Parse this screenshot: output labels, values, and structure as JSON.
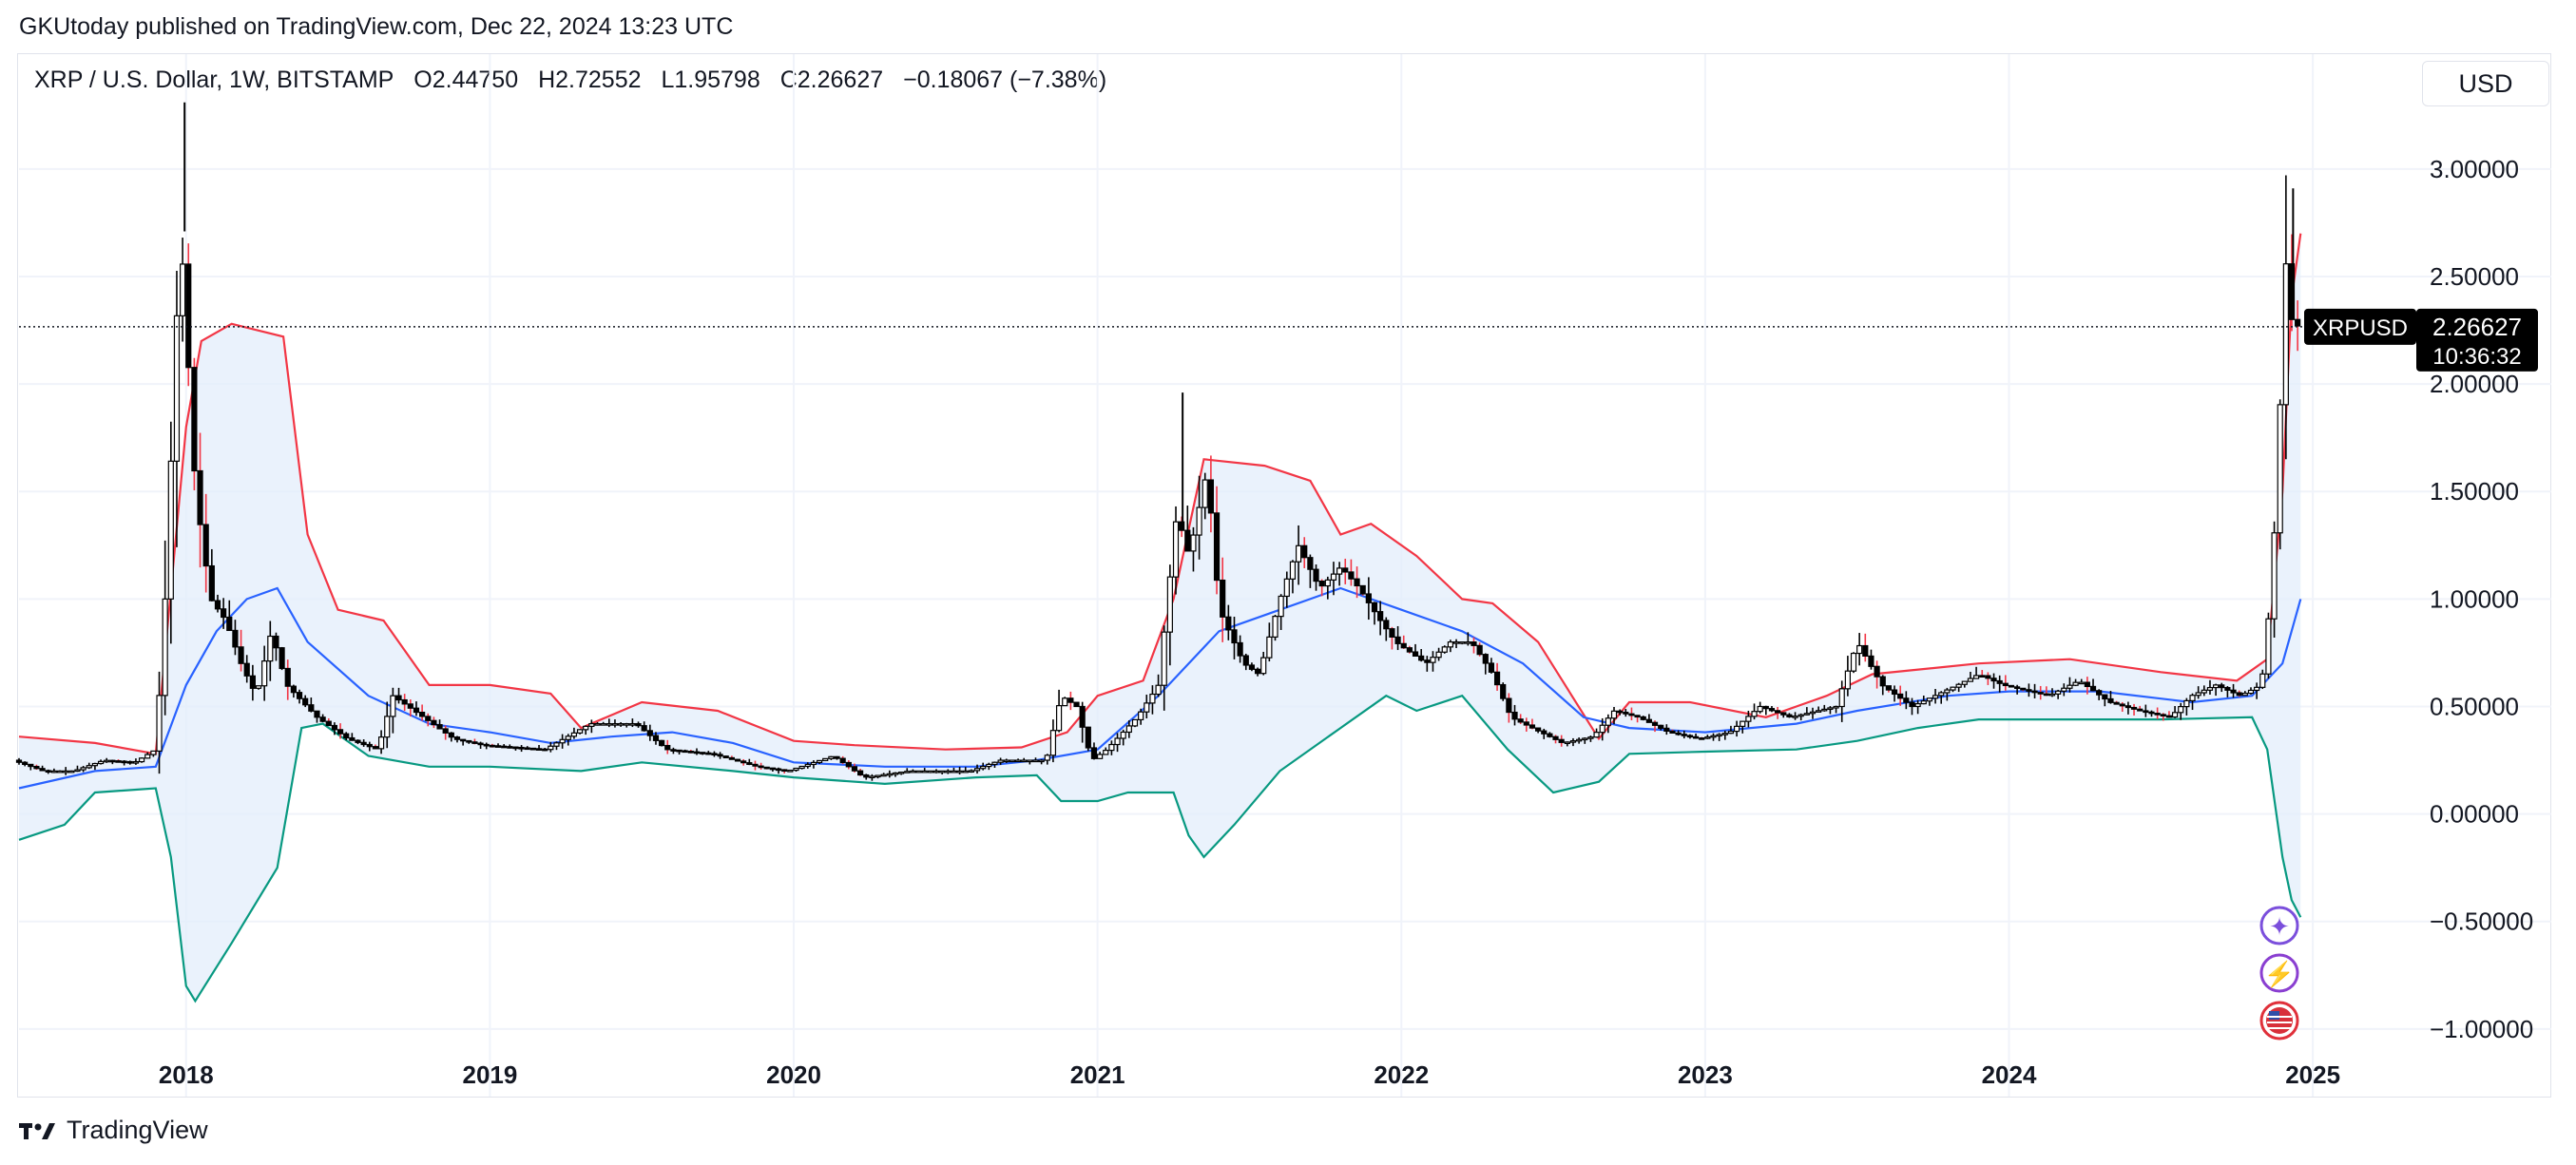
{
  "header": {
    "published": "GKUtoday published on TradingView.com, Dec 22, 2024 13:23 UTC"
  },
  "legend": {
    "symbol": "XRP / U.S. Dollar, 1W, BITSTAMP",
    "open": "O2.44750",
    "high": "H2.72552",
    "low": "L1.95798",
    "close": "C2.26627",
    "change": "−0.18067 (−7.38%)"
  },
  "currency_button": "USD",
  "price_label": {
    "ticker": "XRPUSD",
    "price": "2.26627",
    "countdown": "10:36:32"
  },
  "footer": {
    "brand": "TradingView",
    "logo_text": "17"
  },
  "markers": [
    {
      "name": "star-icon",
      "glyph": "✦",
      "color": "#7b4fdc"
    },
    {
      "name": "lightning-icon",
      "glyph": "⚡",
      "color": "#8a3fd1"
    },
    {
      "name": "us-flag-icon",
      "glyph": "",
      "color": "#e0303a"
    }
  ],
  "chart_data": {
    "type": "candlestick",
    "interval": "1W",
    "indicator": "Bollinger Bands",
    "ylim": [
      -1.25,
      3.45
    ],
    "xlim": [
      2017.45,
      2025.35
    ],
    "yticks": [
      3.0,
      2.5,
      2.0,
      1.5,
      1.0,
      0.5,
      0.0,
      -0.5,
      -1.0
    ],
    "ytick_labels": [
      "3.00000",
      "2.50000",
      "2.00000",
      "1.50000",
      "1.00000",
      "0.50000",
      "0.00000",
      "−0.50000",
      "−1.00000"
    ],
    "xticks": [
      2018,
      2019,
      2020,
      2021,
      2022,
      2023,
      2024,
      2025
    ],
    "xtick_labels": [
      "2018",
      "2019",
      "2020",
      "2021",
      "2022",
      "2023",
      "2024",
      "2025"
    ],
    "last_price": 2.26627,
    "grid": true,
    "colors": {
      "upper": "#f23645",
      "middle": "#2962ff",
      "lower": "#089981",
      "fill": "#e3eefb",
      "candle": "#000000",
      "bear_wick": "#f23645"
    },
    "upper_band": [
      [
        2017.45,
        0.36
      ],
      [
        2017.7,
        0.33
      ],
      [
        2017.9,
        0.28
      ],
      [
        2018.0,
        1.8
      ],
      [
        2018.05,
        2.2
      ],
      [
        2018.15,
        2.28
      ],
      [
        2018.32,
        2.22
      ],
      [
        2018.4,
        1.3
      ],
      [
        2018.5,
        0.95
      ],
      [
        2018.65,
        0.9
      ],
      [
        2018.8,
        0.6
      ],
      [
        2019.0,
        0.6
      ],
      [
        2019.2,
        0.56
      ],
      [
        2019.3,
        0.4
      ],
      [
        2019.5,
        0.52
      ],
      [
        2019.75,
        0.48
      ],
      [
        2020.0,
        0.34
      ],
      [
        2020.2,
        0.32
      ],
      [
        2020.5,
        0.3
      ],
      [
        2020.75,
        0.31
      ],
      [
        2020.9,
        0.38
      ],
      [
        2021.0,
        0.55
      ],
      [
        2021.15,
        0.62
      ],
      [
        2021.25,
        1.0
      ],
      [
        2021.35,
        1.65
      ],
      [
        2021.55,
        1.62
      ],
      [
        2021.7,
        1.55
      ],
      [
        2021.8,
        1.3
      ],
      [
        2021.9,
        1.35
      ],
      [
        2022.05,
        1.2
      ],
      [
        2022.2,
        1.0
      ],
      [
        2022.3,
        0.98
      ],
      [
        2022.45,
        0.8
      ],
      [
        2022.65,
        0.35
      ],
      [
        2022.75,
        0.52
      ],
      [
        2022.95,
        0.52
      ],
      [
        2023.2,
        0.45
      ],
      [
        2023.4,
        0.55
      ],
      [
        2023.55,
        0.65
      ],
      [
        2023.9,
        0.7
      ],
      [
        2024.2,
        0.72
      ],
      [
        2024.5,
        0.66
      ],
      [
        2024.75,
        0.62
      ],
      [
        2024.85,
        0.72
      ],
      [
        2024.9,
        1.5
      ],
      [
        2024.93,
        2.4
      ],
      [
        2024.96,
        2.7
      ]
    ],
    "middle_band": [
      [
        2017.45,
        0.12
      ],
      [
        2017.7,
        0.2
      ],
      [
        2017.9,
        0.22
      ],
      [
        2018.0,
        0.6
      ],
      [
        2018.1,
        0.85
      ],
      [
        2018.2,
        1.0
      ],
      [
        2018.3,
        1.05
      ],
      [
        2018.4,
        0.8
      ],
      [
        2018.6,
        0.55
      ],
      [
        2018.8,
        0.42
      ],
      [
        2019.0,
        0.38
      ],
      [
        2019.2,
        0.33
      ],
      [
        2019.4,
        0.36
      ],
      [
        2019.6,
        0.38
      ],
      [
        2019.8,
        0.33
      ],
      [
        2020.0,
        0.24
      ],
      [
        2020.3,
        0.22
      ],
      [
        2020.6,
        0.22
      ],
      [
        2020.8,
        0.25
      ],
      [
        2021.0,
        0.3
      ],
      [
        2021.2,
        0.55
      ],
      [
        2021.4,
        0.85
      ],
      [
        2021.6,
        0.95
      ],
      [
        2021.8,
        1.05
      ],
      [
        2022.0,
        0.95
      ],
      [
        2022.2,
        0.85
      ],
      [
        2022.4,
        0.7
      ],
      [
        2022.6,
        0.45
      ],
      [
        2022.75,
        0.4
      ],
      [
        2023.0,
        0.38
      ],
      [
        2023.3,
        0.42
      ],
      [
        2023.5,
        0.48
      ],
      [
        2023.8,
        0.55
      ],
      [
        2024.0,
        0.57
      ],
      [
        2024.3,
        0.57
      ],
      [
        2024.6,
        0.52
      ],
      [
        2024.8,
        0.55
      ],
      [
        2024.9,
        0.7
      ],
      [
        2024.96,
        1.0
      ]
    ],
    "lower_band": [
      [
        2017.45,
        -0.12
      ],
      [
        2017.6,
        -0.05
      ],
      [
        2017.7,
        0.1
      ],
      [
        2017.9,
        0.12
      ],
      [
        2017.95,
        -0.2
      ],
      [
        2018.0,
        -0.8
      ],
      [
        2018.03,
        -0.87
      ],
      [
        2018.15,
        -0.6
      ],
      [
        2018.3,
        -0.25
      ],
      [
        2018.38,
        0.4
      ],
      [
        2018.45,
        0.42
      ],
      [
        2018.6,
        0.27
      ],
      [
        2018.8,
        0.22
      ],
      [
        2019.0,
        0.22
      ],
      [
        2019.3,
        0.2
      ],
      [
        2019.5,
        0.24
      ],
      [
        2019.8,
        0.2
      ],
      [
        2020.0,
        0.17
      ],
      [
        2020.3,
        0.14
      ],
      [
        2020.6,
        0.17
      ],
      [
        2020.8,
        0.18
      ],
      [
        2020.88,
        0.06
      ],
      [
        2021.0,
        0.06
      ],
      [
        2021.1,
        0.1
      ],
      [
        2021.25,
        0.1
      ],
      [
        2021.3,
        -0.1
      ],
      [
        2021.35,
        -0.2
      ],
      [
        2021.45,
        -0.05
      ],
      [
        2021.6,
        0.2
      ],
      [
        2021.8,
        0.4
      ],
      [
        2021.95,
        0.55
      ],
      [
        2022.05,
        0.48
      ],
      [
        2022.2,
        0.55
      ],
      [
        2022.35,
        0.3
      ],
      [
        2022.5,
        0.1
      ],
      [
        2022.65,
        0.15
      ],
      [
        2022.75,
        0.28
      ],
      [
        2023.0,
        0.29
      ],
      [
        2023.3,
        0.3
      ],
      [
        2023.5,
        0.34
      ],
      [
        2023.7,
        0.4
      ],
      [
        2023.9,
        0.44
      ],
      [
        2024.2,
        0.44
      ],
      [
        2024.5,
        0.44
      ],
      [
        2024.8,
        0.45
      ],
      [
        2024.85,
        0.3
      ],
      [
        2024.9,
        -0.2
      ],
      [
        2024.93,
        -0.4
      ],
      [
        2024.96,
        -0.48
      ]
    ],
    "price_path": [
      [
        2017.45,
        0.25
      ],
      [
        2017.55,
        0.2
      ],
      [
        2017.65,
        0.2
      ],
      [
        2017.75,
        0.25
      ],
      [
        2017.85,
        0.24
      ],
      [
        2017.92,
        0.3
      ],
      [
        2017.95,
        1.0
      ],
      [
        2017.98,
        2.0
      ],
      [
        2018.0,
        2.75
      ],
      [
        2018.05,
        1.5
      ],
      [
        2018.1,
        1.0
      ],
      [
        2018.15,
        0.9
      ],
      [
        2018.2,
        0.7
      ],
      [
        2018.25,
        0.55
      ],
      [
        2018.3,
        0.85
      ],
      [
        2018.35,
        0.6
      ],
      [
        2018.45,
        0.45
      ],
      [
        2018.55,
        0.35
      ],
      [
        2018.65,
        0.3
      ],
      [
        2018.7,
        0.55
      ],
      [
        2018.8,
        0.45
      ],
      [
        2018.9,
        0.35
      ],
      [
        2019.0,
        0.32
      ],
      [
        2019.2,
        0.3
      ],
      [
        2019.35,
        0.42
      ],
      [
        2019.5,
        0.42
      ],
      [
        2019.6,
        0.3
      ],
      [
        2019.75,
        0.28
      ],
      [
        2019.9,
        0.22
      ],
      [
        2020.0,
        0.2
      ],
      [
        2020.15,
        0.27
      ],
      [
        2020.25,
        0.17
      ],
      [
        2020.4,
        0.2
      ],
      [
        2020.6,
        0.2
      ],
      [
        2020.7,
        0.25
      ],
      [
        2020.85,
        0.25
      ],
      [
        2020.9,
        0.55
      ],
      [
        2020.95,
        0.5
      ],
      [
        2021.0,
        0.25
      ],
      [
        2021.05,
        0.3
      ],
      [
        2021.15,
        0.45
      ],
      [
        2021.22,
        0.6
      ],
      [
        2021.28,
        1.4
      ],
      [
        2021.32,
        1.2
      ],
      [
        2021.38,
        1.6
      ],
      [
        2021.42,
        0.95
      ],
      [
        2021.5,
        0.7
      ],
      [
        2021.55,
        0.65
      ],
      [
        2021.62,
        1.0
      ],
      [
        2021.68,
        1.25
      ],
      [
        2021.75,
        1.05
      ],
      [
        2021.82,
        1.15
      ],
      [
        2021.88,
        1.05
      ],
      [
        2021.95,
        0.9
      ],
      [
        2022.0,
        0.8
      ],
      [
        2022.1,
        0.7
      ],
      [
        2022.18,
        0.8
      ],
      [
        2022.25,
        0.8
      ],
      [
        2022.32,
        0.65
      ],
      [
        2022.38,
        0.45
      ],
      [
        2022.45,
        0.4
      ],
      [
        2022.55,
        0.33
      ],
      [
        2022.65,
        0.36
      ],
      [
        2022.72,
        0.48
      ],
      [
        2022.8,
        0.45
      ],
      [
        2022.9,
        0.38
      ],
      [
        2023.0,
        0.35
      ],
      [
        2023.1,
        0.38
      ],
      [
        2023.2,
        0.5
      ],
      [
        2023.3,
        0.45
      ],
      [
        2023.45,
        0.5
      ],
      [
        2023.52,
        0.8
      ],
      [
        2023.6,
        0.6
      ],
      [
        2023.7,
        0.5
      ],
      [
        2023.85,
        0.6
      ],
      [
        2023.92,
        0.65
      ],
      [
        2024.0,
        0.6
      ],
      [
        2024.15,
        0.55
      ],
      [
        2024.25,
        0.62
      ],
      [
        2024.35,
        0.52
      ],
      [
        2024.45,
        0.48
      ],
      [
        2024.55,
        0.45
      ],
      [
        2024.62,
        0.55
      ],
      [
        2024.7,
        0.6
      ],
      [
        2024.78,
        0.55
      ],
      [
        2024.85,
        0.6
      ],
      [
        2024.88,
        1.0
      ],
      [
        2024.9,
        1.5
      ],
      [
        2024.92,
        2.2
      ],
      [
        2024.935,
        2.7
      ],
      [
        2024.95,
        2.3
      ],
      [
        2024.96,
        2.27
      ]
    ]
  }
}
